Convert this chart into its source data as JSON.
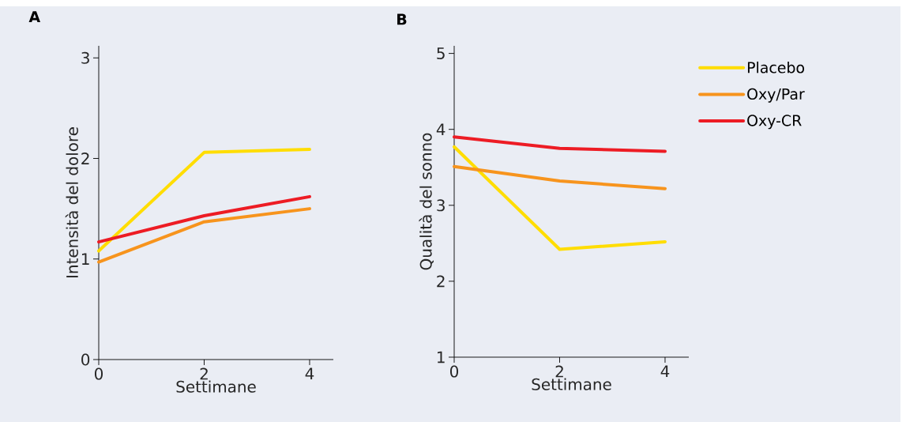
{
  "chart_data": [
    {
      "type": "line",
      "title": "A",
      "xlabel": "Settimane",
      "ylabel": "Intensità del dolore",
      "x": [
        0,
        2,
        4
      ],
      "xlim": [
        0,
        4.45
      ],
      "ylim": [
        0,
        3.12
      ],
      "xticks": [
        0,
        2,
        4
      ],
      "yticks": [
        0,
        1,
        2,
        3
      ],
      "grid": false,
      "legend": false,
      "line_style": "solid",
      "series": [
        {
          "color": "#ffdd00",
          "values": [
            1.08,
            2.06,
            2.09
          ]
        },
        {
          "color": "#f7941d",
          "values": [
            0.97,
            1.37,
            1.5
          ]
        },
        {
          "color": "#ed1c24",
          "values": [
            1.17,
            1.43,
            1.62
          ]
        }
      ]
    },
    {
      "type": "line",
      "title": "B",
      "xlabel": "Settimane",
      "ylabel": "Qualità del sonno",
      "x": [
        0,
        2,
        4
      ],
      "xlim": [
        0,
        4.45
      ],
      "ylim": [
        1,
        5.1
      ],
      "xticks": [
        0,
        2,
        4
      ],
      "yticks": [
        1,
        2,
        3,
        4,
        5
      ],
      "grid": false,
      "legend": "right",
      "line_style": "solid",
      "series": [
        {
          "name": "Placebo",
          "color": "#ffdd00",
          "values": [
            3.77,
            2.42,
            2.52
          ]
        },
        {
          "name": "Oxy/Par",
          "color": "#f7941d",
          "values": [
            3.51,
            3.32,
            3.22
          ]
        },
        {
          "name": "Oxy-CR",
          "color": "#ed1c24",
          "values": [
            3.9,
            3.75,
            3.71
          ]
        }
      ]
    }
  ]
}
